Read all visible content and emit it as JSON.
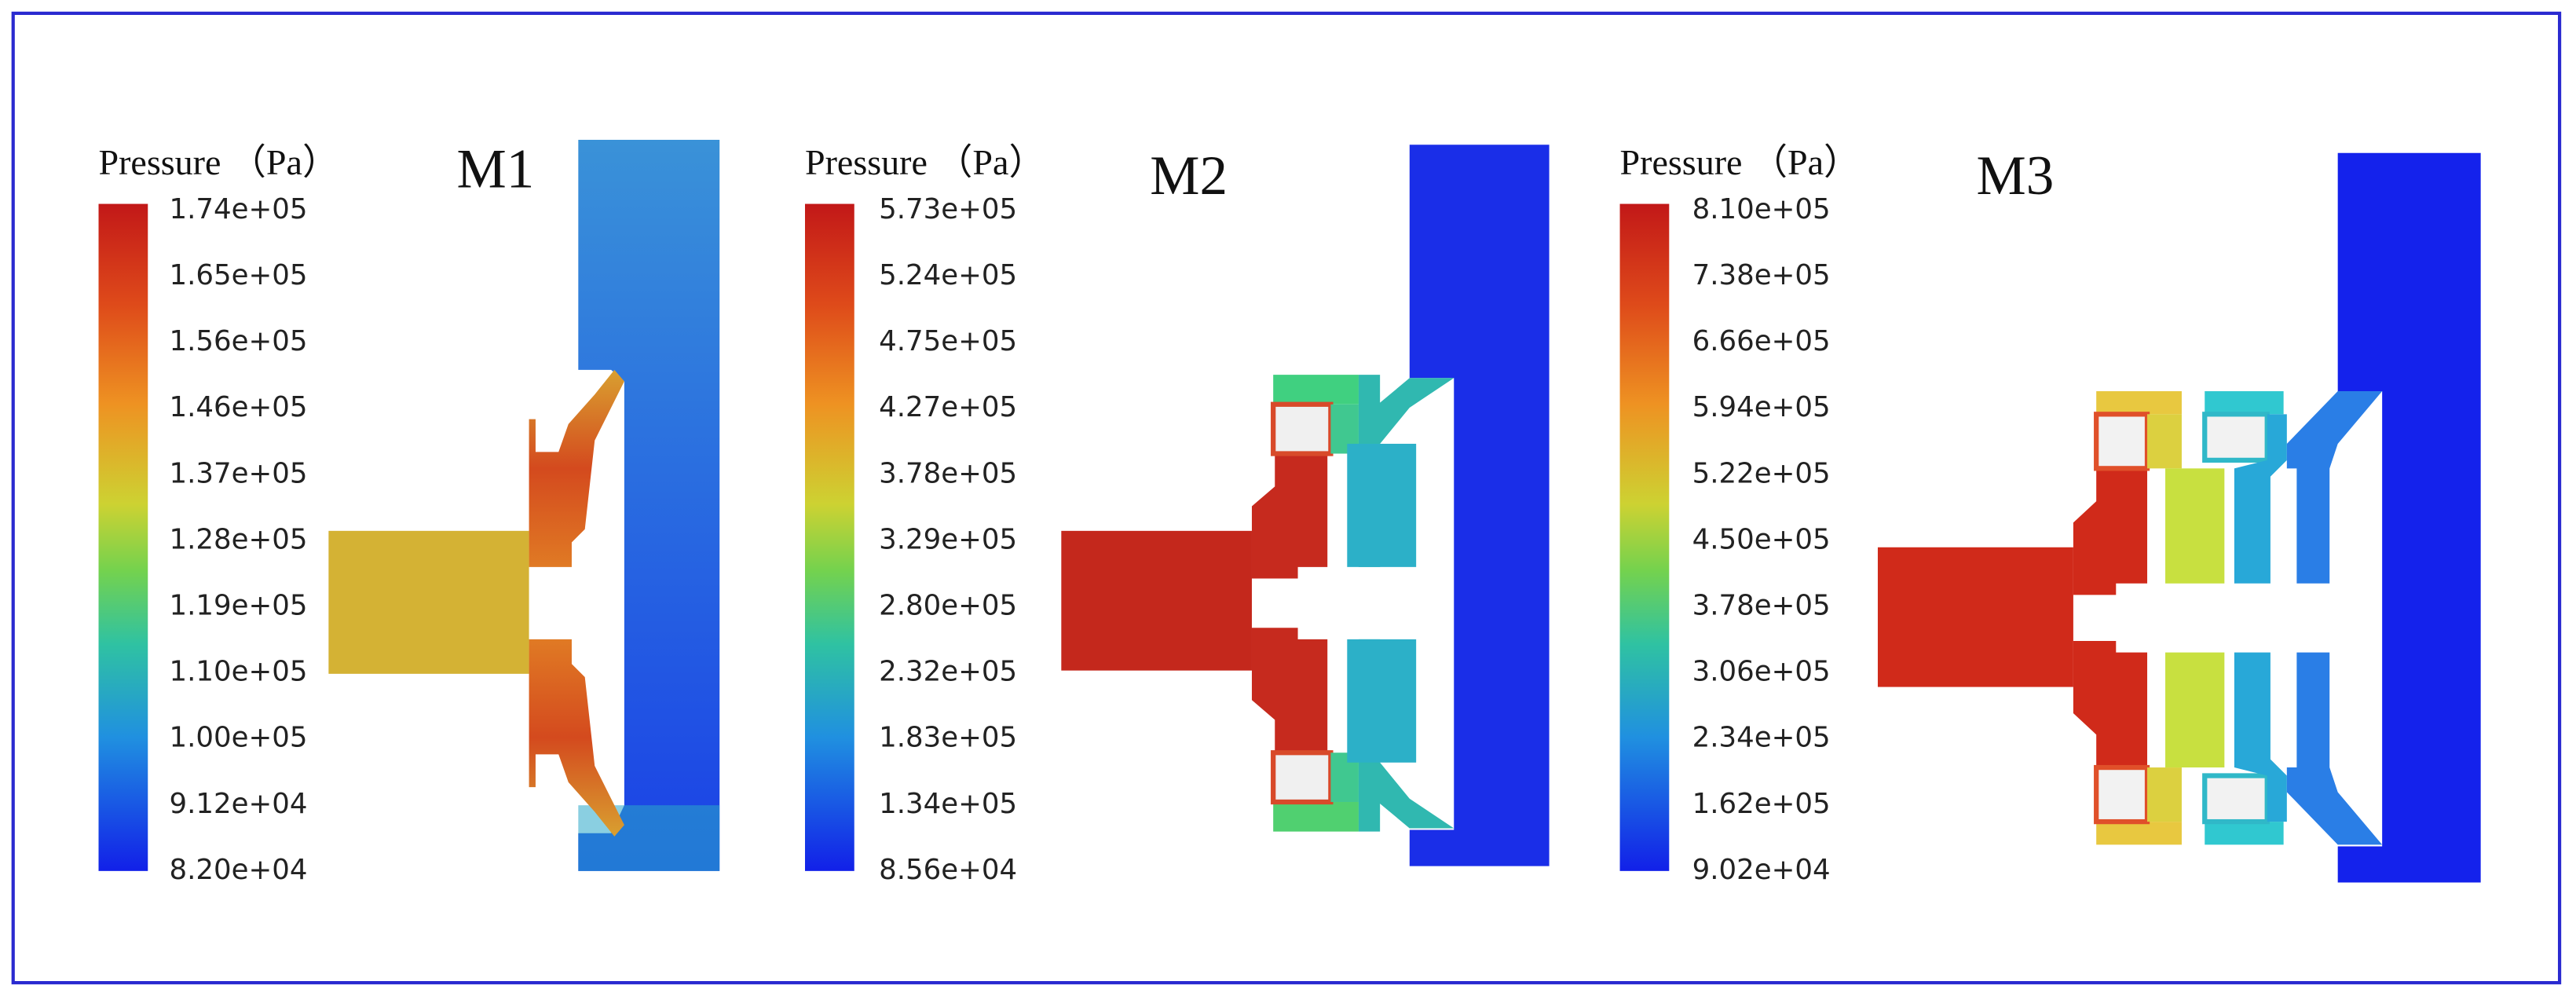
{
  "panels": [
    {
      "legend_title": "Pressure （Pa）",
      "model": "M1",
      "ticks": [
        "1.74e+05",
        "1.65e+05",
        "1.56e+05",
        "1.46e+05",
        "1.37e+05",
        "1.28e+05",
        "1.19e+05",
        "1.10e+05",
        "1.00e+05",
        "9.12e+04",
        "8.20e+04"
      ]
    },
    {
      "legend_title": "Pressure （Pa）",
      "model": "M2",
      "ticks": [
        "5.73e+05",
        "5.24e+05",
        "4.75e+05",
        "4.27e+05",
        "3.78e+05",
        "3.29e+05",
        "2.80e+05",
        "2.32e+05",
        "1.83e+05",
        "1.34e+05",
        "8.56e+04"
      ]
    },
    {
      "legend_title": "Pressure （Pa）",
      "model": "M3",
      "ticks": [
        "8.10e+05",
        "7.38e+05",
        "6.66e+05",
        "5.94e+05",
        "5.22e+05",
        "4.50e+05",
        "3.78e+05",
        "3.06e+05",
        "2.34e+05",
        "1.62e+05",
        "9.02e+04"
      ]
    }
  ]
}
